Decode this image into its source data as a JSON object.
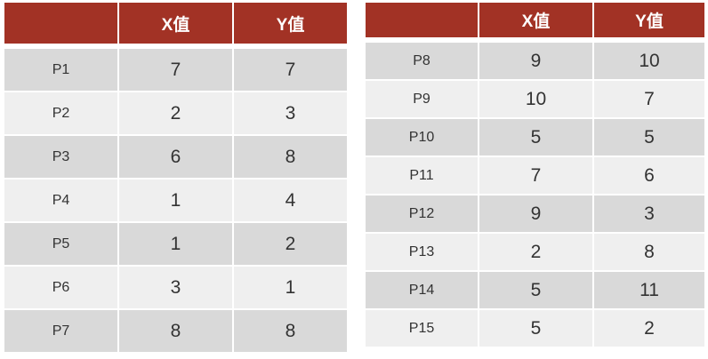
{
  "colors": {
    "header": "#a23225",
    "row_dark": "#d9d9d9",
    "row_light": "#efefef"
  },
  "left_table": {
    "headers": [
      "",
      "X值",
      "Y值"
    ],
    "rows": [
      {
        "label": "P1",
        "x": "7",
        "y": "7"
      },
      {
        "label": "P2",
        "x": "2",
        "y": "3"
      },
      {
        "label": "P3",
        "x": "6",
        "y": "8"
      },
      {
        "label": "P4",
        "x": "1",
        "y": "4"
      },
      {
        "label": "P5",
        "x": "1",
        "y": "2"
      },
      {
        "label": "P6",
        "x": "3",
        "y": "1"
      },
      {
        "label": "P7",
        "x": "8",
        "y": "8"
      }
    ]
  },
  "right_table": {
    "headers": [
      "",
      "X值",
      "Y值"
    ],
    "rows": [
      {
        "label": "P8",
        "x": "9",
        "y": "10"
      },
      {
        "label": "P9",
        "x": "10",
        "y": "7"
      },
      {
        "label": "P10",
        "x": "5",
        "y": "5"
      },
      {
        "label": "P11",
        "x": "7",
        "y": "6"
      },
      {
        "label": "P12",
        "x": "9",
        "y": "3"
      },
      {
        "label": "P13",
        "x": "2",
        "y": "8"
      },
      {
        "label": "P14",
        "x": "5",
        "y": "11"
      },
      {
        "label": "P15",
        "x": "5",
        "y": "2"
      }
    ]
  }
}
